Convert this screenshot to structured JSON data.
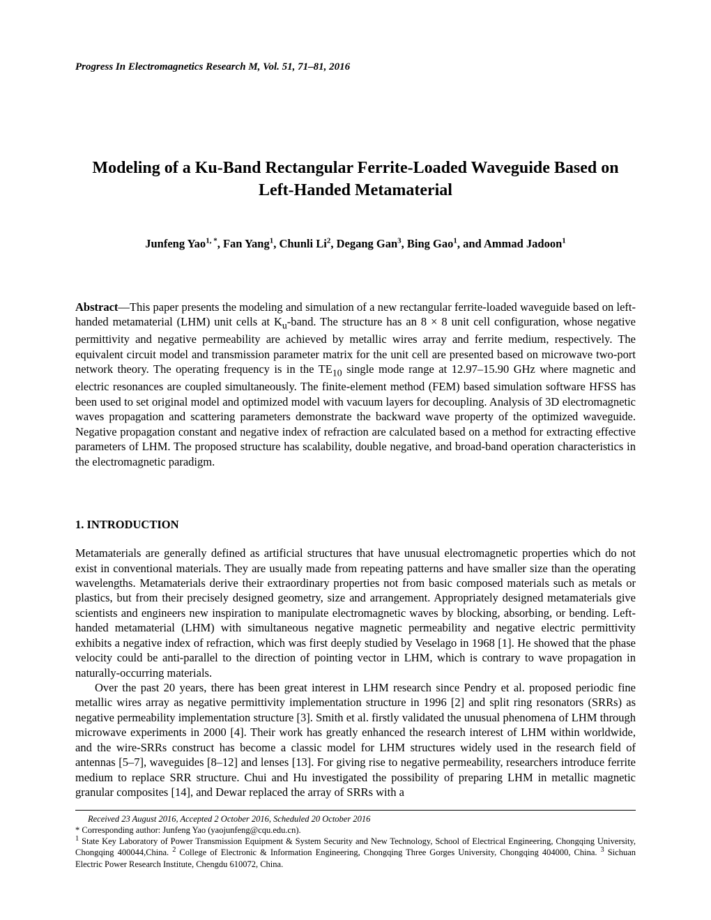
{
  "journal_header": "Progress In Electromagnetics Research M, Vol. 51, 71–81, 2016",
  "title": "Modeling of a Ku-Band Rectangular Ferrite-Loaded Waveguide Based on Left-Handed Metamaterial",
  "authors_html": "Junfeng Yao<sup>1, *</sup>, Fan Yang<sup>1</sup>, Chunli Li<sup>2</sup>, Degang Gan<sup>3</sup>, Bing Gao<sup>1</sup>, and Ammad Jadoon<sup>1</sup>",
  "abstract_label": "Abstract",
  "abstract_text": "—This paper presents the modeling and simulation of a new rectangular ferrite-loaded waveguide based on left-handed metamaterial (LHM) unit cells at K<sub>u</sub>-band. The structure has an 8 × 8 unit cell configuration, whose negative permittivity and negative permeability are achieved by metallic wires array and ferrite medium, respectively. The equivalent circuit model and transmission parameter matrix for the unit cell are presented based on microwave two-port network theory. The operating frequency is in the TE<sub>10</sub> single mode range at 12.97–15.90 GHz where magnetic and electric resonances are coupled simultaneously. The finite-element method (FEM) based simulation software HFSS has been used to set original model and optimized model with vacuum layers for decoupling. Analysis of 3D electromagnetic waves propagation and scattering parameters demonstrate the backward wave property of the optimized waveguide. Negative propagation constant and negative index of refraction are calculated based on a method for extracting effective parameters of LHM. The proposed structure has scalability, double negative, and broad-band operation characteristics in the electromagnetic paradigm.",
  "section1_heading": "1. INTRODUCTION",
  "intro_para1": "Metamaterials are generally defined as artificial structures that have unusual electromagnetic properties which do not exist in conventional materials. They are usually made from repeating patterns and have smaller size than the operating wavelengths. Metamaterials derive their extraordinary properties not from basic composed materials such as metals or plastics, but from their precisely designed geometry, size and arrangement. Appropriately designed metamaterials give scientists and engineers new inspiration to manipulate electromagnetic waves by blocking, absorbing, or bending. Left-handed metamaterial (LHM) with simultaneous negative magnetic permeability and negative electric permittivity exhibits a negative index of refraction, which was first deeply studied by Veselago in 1968 [1]. He showed that the phase velocity could be anti-parallel to the direction of pointing vector in LHM, which is contrary to wave propagation in naturally-occurring materials.",
  "intro_para2": "Over the past 20 years, there has been great interest in LHM research since Pendry et al. proposed periodic fine metallic wires array as negative permittivity implementation structure in 1996 [2] and split ring resonators (SRRs) as negative permeability implementation structure [3]. Smith et al. firstly validated the unusual phenomena of LHM through microwave experiments in 2000 [4]. Their work has greatly enhanced the research interest of LHM within worldwide, and the wire-SRRs construct has become a classic model for LHM structures widely used in the research field of antennas [5–7], waveguides [8–12] and lenses [13]. For giving rise to negative permeability, researchers introduce ferrite medium to replace SRR structure. Chui and Hu investigated the possibility of preparing LHM in metallic magnetic granular composites [14], and Dewar replaced the array of SRRs with a",
  "footnote_received": "Received 23 August 2016, Accepted 2 October 2016, Scheduled 20 October 2016",
  "footnote_corresponding": "* Corresponding author: Junfeng Yao (yaojunfeng@cqu.edu.cn).",
  "footnote_affiliations": "<sup>1</sup> State Key Laboratory of Power Transmission Equipment & System Security and New Technology, School of Electrical Engineering, Chongqing University, Chongqing 400044,China. <sup>2</sup> College of Electronic & Information Engineering, Chongqing Three Gorges University, Chongqing 404000, China. <sup>3</sup> Sichuan Electric Power Research Institute, Chengdu 610072, China."
}
